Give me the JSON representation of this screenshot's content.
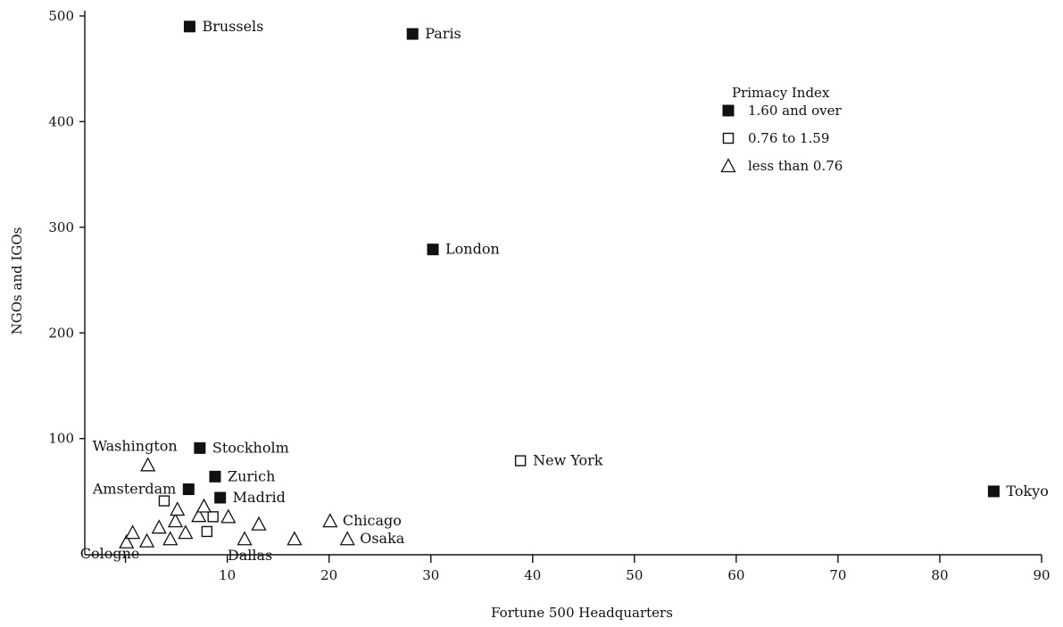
{
  "chart_data": {
    "type": "scatter",
    "title": "",
    "xlabel": "Fortune 500 Headquarters",
    "ylabel": "NGOs and IGOs",
    "xlim": [
      -4,
      90
    ],
    "ylim": [
      -10,
      505
    ],
    "x_ticks": [
      10,
      20,
      30,
      40,
      50,
      60,
      70,
      80,
      90
    ],
    "y_ticks": [
      100,
      200,
      300,
      400,
      500
    ],
    "grid": false,
    "legend": {
      "title": "Primacy Index",
      "placement": "top-right",
      "entries": [
        {
          "marker": "filled-square",
          "label": "1.60 and over"
        },
        {
          "marker": "open-square",
          "label": "0.76 to 1.59"
        },
        {
          "marker": "open-triangle",
          "label": "less than 0.76"
        }
      ]
    },
    "categories": [
      {
        "name": "1.60 and over",
        "marker": "filled-square",
        "points": [
          {
            "x": 6.3,
            "y": 490,
            "label": "Brussels",
            "label_pos": "right"
          },
          {
            "x": 28.2,
            "y": 483,
            "label": "Paris",
            "label_pos": "right"
          },
          {
            "x": 30.2,
            "y": 279,
            "label": "London",
            "label_pos": "right"
          },
          {
            "x": 7.3,
            "y": 91,
            "label": "Stockholm",
            "label_pos": "right"
          },
          {
            "x": 8.8,
            "y": 64,
            "label": "Zurich",
            "label_pos": "right"
          },
          {
            "x": 6.2,
            "y": 52,
            "label": "Amsterdam",
            "label_pos": "left"
          },
          {
            "x": 9.3,
            "y": 44,
            "label": "Madrid",
            "label_pos": "right"
          },
          {
            "x": 85.3,
            "y": 50,
            "label": "Tokyo",
            "label_pos": "right"
          }
        ]
      },
      {
        "name": "0.76 to 1.59",
        "marker": "open-square",
        "points": [
          {
            "x": 38.8,
            "y": 79,
            "label": "New York",
            "label_pos": "right"
          },
          {
            "x": 3.8,
            "y": 41,
            "label": "",
            "label_pos": "none"
          },
          {
            "x": 8.6,
            "y": 26,
            "label": "",
            "label_pos": "none"
          },
          {
            "x": 8.0,
            "y": 12,
            "label": "",
            "label_pos": "none"
          }
        ]
      },
      {
        "name": "less than 0.76",
        "marker": "open-triangle",
        "points": [
          {
            "x": 2.2,
            "y": 75,
            "label": "Washington",
            "label_pos": "above-left"
          },
          {
            "x": 20.1,
            "y": 22,
            "label": "Chicago",
            "label_pos": "right"
          },
          {
            "x": 21.8,
            "y": 5,
            "label": "Osaka",
            "label_pos": "right"
          },
          {
            "x": 11.7,
            "y": 5,
            "label": "Dallas",
            "label_pos": "below"
          },
          {
            "x": 0.1,
            "y": 2,
            "label": "Cologne",
            "label_pos": "below-left"
          },
          {
            "x": 0.7,
            "y": 11,
            "label": "",
            "label_pos": "none"
          },
          {
            "x": 2.1,
            "y": 3,
            "label": "",
            "label_pos": "none"
          },
          {
            "x": 3.3,
            "y": 16,
            "label": "",
            "label_pos": "none"
          },
          {
            "x": 4.4,
            "y": 5,
            "label": "",
            "label_pos": "none"
          },
          {
            "x": 4.9,
            "y": 22,
            "label": "",
            "label_pos": "none"
          },
          {
            "x": 5.1,
            "y": 33,
            "label": "",
            "label_pos": "none"
          },
          {
            "x": 5.9,
            "y": 11,
            "label": "",
            "label_pos": "none"
          },
          {
            "x": 7.2,
            "y": 27,
            "label": "",
            "label_pos": "none"
          },
          {
            "x": 7.7,
            "y": 36,
            "label": "",
            "label_pos": "none"
          },
          {
            "x": 10.1,
            "y": 26,
            "label": "",
            "label_pos": "none"
          },
          {
            "x": 13.1,
            "y": 19,
            "label": "",
            "label_pos": "none"
          },
          {
            "x": 16.6,
            "y": 5,
            "label": "",
            "label_pos": "none"
          }
        ]
      }
    ]
  }
}
